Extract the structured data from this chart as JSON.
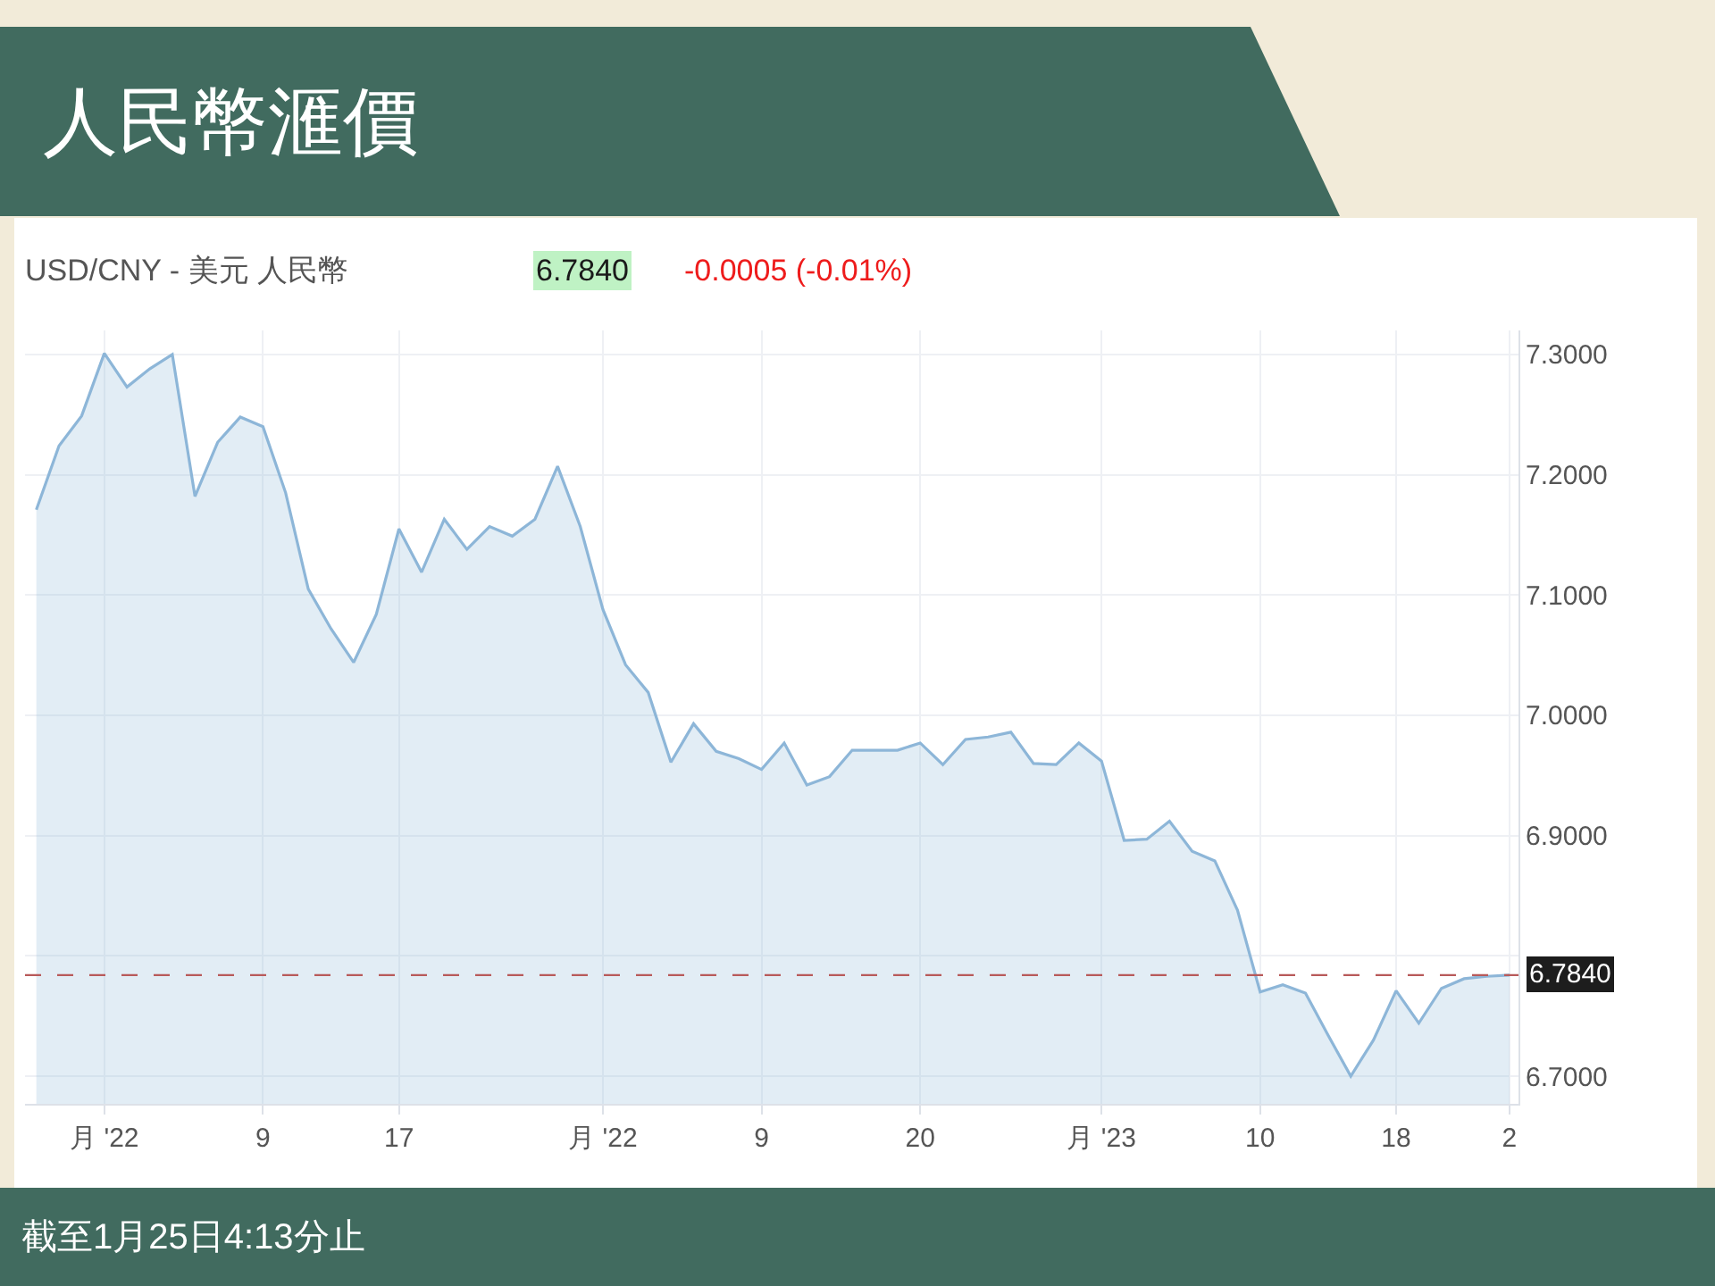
{
  "chart_data": {
    "type": "area",
    "title": "人民幣滙價",
    "subtitle": "USD/CNY - 美元 人民幣",
    "annotations": [
      "6.7840",
      "-0.0005 (-0.01%)",
      "截至1月25日4:13分止"
    ],
    "categories": [
      null,
      null,
      null,
      "月 '22",
      null,
      null,
      null,
      null,
      null,
      null,
      "9",
      null,
      null,
      null,
      null,
      null,
      "17",
      null,
      null,
      null,
      null,
      null,
      null,
      null,
      null,
      "月 '22",
      null,
      null,
      null,
      null,
      null,
      null,
      "9",
      null,
      null,
      null,
      null,
      null,
      null,
      "20",
      null,
      null,
      null,
      null,
      null,
      null,
      null,
      "月 '23",
      null,
      null,
      null,
      null,
      null,
      null,
      "10",
      null,
      null,
      null,
      null,
      null,
      "18",
      null,
      null,
      null,
      null,
      "2"
    ],
    "series": [
      {
        "color": "#8db6d8",
        "values": [
          7.171,
          7.224,
          7.249,
          7.301,
          7.273,
          7.288,
          7.3,
          7.182,
          7.227,
          7.248,
          7.24,
          7.185,
          7.105,
          7.072,
          7.044,
          7.084,
          7.155,
          7.119,
          7.163,
          7.138,
          7.157,
          7.149,
          7.163,
          7.207,
          7.157,
          7.088,
          7.042,
          7.019,
          6.961,
          6.993,
          6.97,
          6.964,
          6.955,
          6.977,
          6.942,
          6.949,
          6.971,
          6.971,
          6.971,
          6.977,
          6.959,
          6.98,
          6.982,
          6.986,
          6.96,
          6.959,
          6.977,
          6.962,
          6.896,
          6.897,
          6.912,
          6.887,
          6.879,
          6.838,
          6.77,
          6.776,
          6.769,
          6.734,
          6.7,
          6.73,
          6.771,
          6.744,
          6.773,
          6.781,
          6.783,
          6.784
        ]
      }
    ],
    "ylim": [
      6.677,
      7.32
    ],
    "yticks": [
      {
        "value": 6.7,
        "label": "6.7000"
      },
      {
        "value": 6.8,
        "label": null
      },
      {
        "value": 6.9,
        "label": "6.9000"
      },
      {
        "value": 7.0,
        "label": "7.0000"
      },
      {
        "value": 7.1,
        "label": "7.1000"
      },
      {
        "value": 7.2,
        "label": "7.2000"
      },
      {
        "value": 7.3,
        "label": "7.3000"
      }
    ],
    "ref_lines": [
      {
        "axis": "y",
        "value": 6.784,
        "label": "6.7840",
        "color": "#b85a5a",
        "line_style": "dashed"
      }
    ],
    "grid": true
  }
}
